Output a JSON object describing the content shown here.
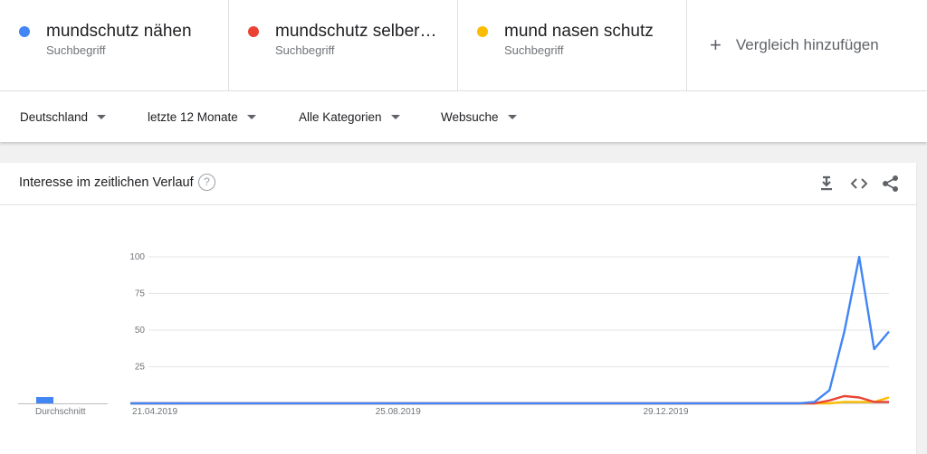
{
  "terms": [
    {
      "name": "mundschutz nähen",
      "sub": "Suchbegriff",
      "color": "#4285f4"
    },
    {
      "name": "mundschutz selber…",
      "sub": "Suchbegriff",
      "color": "#ea4335"
    },
    {
      "name": "mund nasen schutz",
      "sub": "Suchbegriff",
      "color": "#fbbc04"
    }
  ],
  "add_compare": {
    "icon": "plus-icon",
    "label": "Vergleich hinzufügen"
  },
  "filters": {
    "region": "Deutschland",
    "time": "letzte 12 Monate",
    "category": "Alle Kategorien",
    "search_type": "Websuche"
  },
  "card": {
    "title": "Interesse im zeitlichen Verlauf",
    "help_icon": "help-icon",
    "tools": [
      "download-icon",
      "embed-icon",
      "share-icon"
    ],
    "average_label": "Durchschnitt"
  },
  "chart_data": {
    "type": "line",
    "title": "",
    "xlabel": "",
    "ylabel": "",
    "ylim": [
      0,
      100
    ],
    "yticks": [
      25,
      50,
      75,
      100
    ],
    "x_tick_labels": [
      "21.04.2019",
      "25.08.2019",
      "29.12.2019"
    ],
    "x": [
      "21.04.2019",
      "28.04.2019",
      "05.05.2019",
      "12.05.2019",
      "19.05.2019",
      "26.05.2019",
      "02.06.2019",
      "09.06.2019",
      "16.06.2019",
      "23.06.2019",
      "30.06.2019",
      "07.07.2019",
      "14.07.2019",
      "21.07.2019",
      "28.07.2019",
      "04.08.2019",
      "11.08.2019",
      "18.08.2019",
      "25.08.2019",
      "01.09.2019",
      "08.09.2019",
      "15.09.2019",
      "22.09.2019",
      "29.09.2019",
      "06.10.2019",
      "13.10.2019",
      "20.10.2019",
      "27.10.2019",
      "03.11.2019",
      "10.11.2019",
      "17.11.2019",
      "24.11.2019",
      "01.12.2019",
      "08.12.2019",
      "15.12.2019",
      "22.12.2019",
      "29.12.2019",
      "05.01.2020",
      "12.01.2020",
      "19.01.2020",
      "26.01.2020",
      "02.02.2020",
      "09.02.2020",
      "16.02.2020",
      "23.02.2020",
      "01.03.2020",
      "08.03.2020",
      "15.03.2020",
      "22.03.2020",
      "29.03.2020",
      "05.04.2020",
      "12.04.2020"
    ],
    "series": [
      {
        "name": "mundschutz nähen",
        "color": "#4285f4",
        "values": [
          0,
          0,
          0,
          0,
          0,
          0,
          0,
          0,
          0,
          0,
          0,
          0,
          0,
          0,
          0,
          0,
          0,
          0,
          0,
          0,
          0,
          0,
          0,
          0,
          0,
          0,
          0,
          0,
          0,
          0,
          0,
          0,
          0,
          0,
          0,
          0,
          0,
          0,
          0,
          0,
          0,
          0,
          0,
          0,
          0,
          0,
          1,
          9,
          49,
          100,
          37,
          49
        ]
      },
      {
        "name": "mundschutz selber…",
        "color": "#ea4335",
        "values": [
          0,
          0,
          0,
          0,
          0,
          0,
          0,
          0,
          0,
          0,
          0,
          0,
          0,
          0,
          0,
          0,
          0,
          0,
          0,
          0,
          0,
          0,
          0,
          0,
          0,
          0,
          0,
          0,
          0,
          0,
          0,
          0,
          0,
          0,
          0,
          0,
          0,
          0,
          0,
          0,
          0,
          0,
          0,
          0,
          0,
          0,
          0,
          2,
          5,
          4,
          1,
          1
        ]
      },
      {
        "name": "mund nasen schutz",
        "color": "#fbbc04",
        "values": [
          0,
          0,
          0,
          0,
          0,
          0,
          0,
          0,
          0,
          0,
          0,
          0,
          0,
          0,
          0,
          0,
          0,
          0,
          0,
          0,
          0,
          0,
          0,
          0,
          0,
          0,
          0,
          0,
          0,
          0,
          0,
          0,
          0,
          0,
          0,
          0,
          0,
          0,
          0,
          0,
          0,
          0,
          0,
          0,
          0,
          0,
          0,
          0,
          1,
          1,
          1,
          4
        ]
      }
    ],
    "average": [
      {
        "series": "mundschutz nähen",
        "value": 4
      }
    ],
    "grid": true,
    "legend": "none"
  }
}
